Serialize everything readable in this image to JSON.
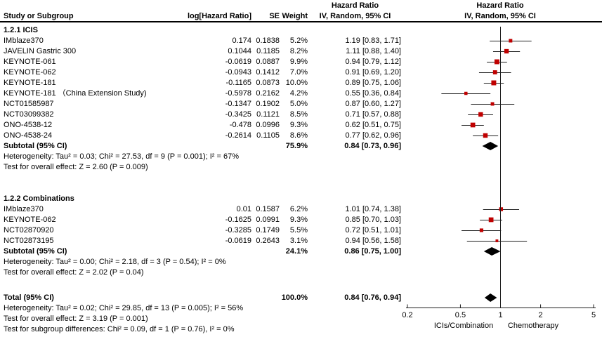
{
  "header": {
    "col_study": "Study or Subgroup",
    "col_log_hr": "log[Hazard Ratio]",
    "col_se": "SE",
    "col_weight": "Weight",
    "effect_title_text_col": "Hazard Ratio",
    "effect_subtitle_text_col": "IV, Random, 95% CI",
    "effect_title_plot_col": "Hazard Ratio",
    "effect_subtitle_plot_col": "IV, Random, 95% CI"
  },
  "chart_data": {
    "type": "scatter",
    "variant": "forest-plot",
    "effect_measure": "Hazard Ratio",
    "model": "IV, Random, 95% CI",
    "x_scale": "log",
    "xlim": [
      0.2,
      5
    ],
    "x_ticks": [
      "0.2",
      "0.5",
      "1",
      "2",
      "5"
    ],
    "favours_left": "ICIs/Combination",
    "favours_right": "Chemotherapy",
    "marker_color": "#c00000",
    "diamond_color": "#000000",
    "line_color": "#1f1f1f",
    "sections": [
      {
        "title": "1.2.1 ICIS",
        "studies": [
          {
            "name": "IMblaze370",
            "log_hr": "0.174",
            "se": "0.1838",
            "weight": "5.2%",
            "ci_text": "1.19 [0.83, 1.71]",
            "hr": 1.19,
            "lo": 0.83,
            "hi": 1.71,
            "w": 5.2
          },
          {
            "name": "JAVELIN Gastric 300",
            "log_hr": "0.1044",
            "se": "0.1185",
            "weight": "8.2%",
            "ci_text": "1.11 [0.88, 1.40]",
            "hr": 1.11,
            "lo": 0.88,
            "hi": 1.4,
            "w": 8.2
          },
          {
            "name": "KEYNOTE-061",
            "log_hr": "-0.0619",
            "se": "0.0887",
            "weight": "9.9%",
            "ci_text": "0.94 [0.79, 1.12]",
            "hr": 0.94,
            "lo": 0.79,
            "hi": 1.12,
            "w": 9.9
          },
          {
            "name": "KEYNOTE-062",
            "log_hr": "-0.0943",
            "se": "0.1412",
            "weight": "7.0%",
            "ci_text": "0.91 [0.69, 1.20]",
            "hr": 0.91,
            "lo": 0.69,
            "hi": 1.2,
            "w": 7.0
          },
          {
            "name": "KEYNOTE-181",
            "log_hr": "-0.1165",
            "se": "0.0873",
            "weight": "10.0%",
            "ci_text": "0.89 [0.75, 1.06]",
            "hr": 0.89,
            "lo": 0.75,
            "hi": 1.06,
            "w": 10.0
          },
          {
            "name": "KEYNOTE-181 （China Extension Study)",
            "log_hr": "-0.5978",
            "se": "0.2162",
            "weight": "4.2%",
            "ci_text": "0.55 [0.36, 0.84]",
            "hr": 0.55,
            "lo": 0.36,
            "hi": 0.84,
            "w": 4.2
          },
          {
            "name": "NCT01585987",
            "log_hr": "-0.1347",
            "se": "0.1902",
            "weight": "5.0%",
            "ci_text": "0.87 [0.60, 1.27]",
            "hr": 0.87,
            "lo": 0.6,
            "hi": 1.27,
            "w": 5.0
          },
          {
            "name": "NCT03099382",
            "log_hr": "-0.3425",
            "se": "0.1121",
            "weight": "8.5%",
            "ci_text": "0.71 [0.57, 0.88]",
            "hr": 0.71,
            "lo": 0.57,
            "hi": 0.88,
            "w": 8.5
          },
          {
            "name": "ONO-4538-12",
            "log_hr": "-0.478",
            "se": "0.0996",
            "weight": "9.3%",
            "ci_text": "0.62 [0.51, 0.75]",
            "hr": 0.62,
            "lo": 0.51,
            "hi": 0.75,
            "w": 9.3
          },
          {
            "name": "ONO-4538-24",
            "log_hr": "-0.2614",
            "se": "0.1105",
            "weight": "8.6%",
            "ci_text": "0.77 [0.62, 0.96]",
            "hr": 0.77,
            "lo": 0.62,
            "hi": 0.96,
            "w": 8.6
          }
        ],
        "subtotal": {
          "label": "Subtotal (95% CI)",
          "weight": "75.9%",
          "ci_text": "0.84 [0.73, 0.96]",
          "hr": 0.84,
          "lo": 0.73,
          "hi": 0.96
        },
        "heterogeneity": "Heterogeneity: Tau² = 0.03; Chi² = 27.53, df = 9 (P = 0.001); I² = 67%",
        "overall_effect": "Test for overall effect: Z = 2.60 (P = 0.009)"
      },
      {
        "title": "1.2.2 Combinations",
        "studies": [
          {
            "name": "IMblaze370",
            "log_hr": "0.01",
            "se": "0.1587",
            "weight": "6.2%",
            "ci_text": "1.01 [0.74, 1.38]",
            "hr": 1.01,
            "lo": 0.74,
            "hi": 1.38,
            "w": 6.2
          },
          {
            "name": "KEYNOTE-062",
            "log_hr": "-0.1625",
            "se": "0.0991",
            "weight": "9.3%",
            "ci_text": "0.85 [0.70, 1.03]",
            "hr": 0.85,
            "lo": 0.7,
            "hi": 1.03,
            "w": 9.3
          },
          {
            "name": "NCT02870920",
            "log_hr": "-0.3285",
            "se": "0.1749",
            "weight": "5.5%",
            "ci_text": "0.72 [0.51, 1.01]",
            "hr": 0.72,
            "lo": 0.51,
            "hi": 1.01,
            "w": 5.5
          },
          {
            "name": "NCT02873195",
            "log_hr": "-0.0619",
            "se": "0.2643",
            "weight": "3.1%",
            "ci_text": "0.94 [0.56, 1.58]",
            "hr": 0.94,
            "lo": 0.56,
            "hi": 1.58,
            "w": 3.1
          }
        ],
        "subtotal": {
          "label": "Subtotal (95% CI)",
          "weight": "24.1%",
          "ci_text": "0.86 [0.75, 1.00]",
          "hr": 0.86,
          "lo": 0.75,
          "hi": 1.0
        },
        "heterogeneity": "Heterogeneity: Tau² = 0.00; Chi² = 2.18, df = 3 (P = 0.54); I² = 0%",
        "overall_effect": "Test for overall effect: Z = 2.02 (P = 0.04)"
      }
    ],
    "total": {
      "label": "Total (95% CI)",
      "weight": "100.0%",
      "ci_text": "0.84 [0.76, 0.94]",
      "hr": 0.84,
      "lo": 0.76,
      "hi": 0.94,
      "heterogeneity": "Heterogeneity: Tau² = 0.02; Chi² = 29.85, df = 13 (P = 0.005); I² = 56%",
      "overall_effect": "Test for overall effect: Z = 3.19 (P = 0.001)",
      "subgroup_differences": "Test for subgroup differences: Chi² = 0.09, df = 1 (P = 0.76), I² = 0%"
    }
  }
}
